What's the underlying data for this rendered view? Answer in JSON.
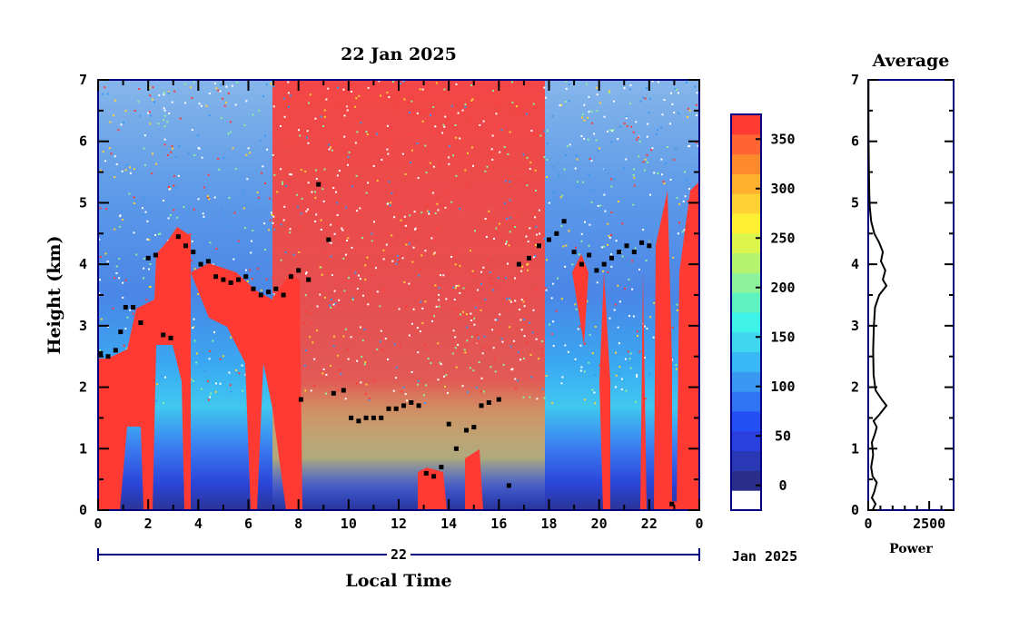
{
  "colors": {
    "axis": "#000080",
    "colorbar": [
      "#ffffff",
      "#2a2e8a",
      "#2a38b6",
      "#2940df",
      "#2350f5",
      "#2f74f2",
      "#3a98f2",
      "#38b8f4",
      "#3fd6ee",
      "#40f3e8",
      "#5ef2c0",
      "#8df29a",
      "#b5f36e",
      "#dcf54c",
      "#ffef33",
      "#ffd233",
      "#ffb02d",
      "#ff8a2d",
      "#ff6432",
      "#ff3a33"
    ]
  },
  "chart_data": [
    {
      "type": "heatmap",
      "title": "22 Jan 2025",
      "xlabel": "Local Time",
      "ylabel": "Height (km)",
      "xlim": [
        0,
        24
      ],
      "ylim": [
        0,
        7
      ],
      "x_ticks": [
        "0",
        "2",
        "4",
        "6",
        "8",
        "10",
        "12",
        "14",
        "16",
        "18",
        "20",
        "22",
        "0"
      ],
      "y_ticks": [
        "0",
        "1",
        "2",
        "3",
        "4",
        "5",
        "6",
        "7"
      ],
      "date_bar": {
        "day": "22",
        "month_year": "Jan 2025"
      },
      "colorbar": {
        "ticks": [
          "0",
          "50",
          "100",
          "150",
          "200",
          "250",
          "300",
          "350"
        ],
        "tick_values": [
          0,
          50,
          100,
          150,
          200,
          250,
          300,
          350
        ],
        "range": [
          -25,
          375
        ]
      },
      "cloud_base_points": [
        [
          0.1,
          2.55
        ],
        [
          0.4,
          2.5
        ],
        [
          0.7,
          2.6
        ],
        [
          0.9,
          2.9
        ],
        [
          1.1,
          3.3
        ],
        [
          1.4,
          3.3
        ],
        [
          1.7,
          3.05
        ],
        [
          2.0,
          4.1
        ],
        [
          2.3,
          4.15
        ],
        [
          2.6,
          2.85
        ],
        [
          2.9,
          2.8
        ],
        [
          3.2,
          4.45
        ],
        [
          3.5,
          4.3
        ],
        [
          3.8,
          4.2
        ],
        [
          4.1,
          4.0
        ],
        [
          4.4,
          4.05
        ],
        [
          4.7,
          3.8
        ],
        [
          5.0,
          3.75
        ],
        [
          5.3,
          3.7
        ],
        [
          5.6,
          3.75
        ],
        [
          5.9,
          3.8
        ],
        [
          6.2,
          3.6
        ],
        [
          6.5,
          3.5
        ],
        [
          6.8,
          3.55
        ],
        [
          7.1,
          3.6
        ],
        [
          7.4,
          3.5
        ],
        [
          7.7,
          3.8
        ],
        [
          8.0,
          3.9
        ],
        [
          8.1,
          1.8
        ],
        [
          8.4,
          3.75
        ],
        [
          8.8,
          5.3
        ],
        [
          9.2,
          4.4
        ],
        [
          9.4,
          1.9
        ],
        [
          9.8,
          1.95
        ],
        [
          10.1,
          1.5
        ],
        [
          10.4,
          1.45
        ],
        [
          10.7,
          1.5
        ],
        [
          11.0,
          1.5
        ],
        [
          11.3,
          1.5
        ],
        [
          11.6,
          1.65
        ],
        [
          11.9,
          1.65
        ],
        [
          12.2,
          1.7
        ],
        [
          12.5,
          1.75
        ],
        [
          12.8,
          1.7
        ],
        [
          13.1,
          0.6
        ],
        [
          13.4,
          0.55
        ],
        [
          13.7,
          0.7
        ],
        [
          14.0,
          1.4
        ],
        [
          14.3,
          1.0
        ],
        [
          14.7,
          1.3
        ],
        [
          15.0,
          1.35
        ],
        [
          15.3,
          1.7
        ],
        [
          15.6,
          1.75
        ],
        [
          16.0,
          1.8
        ],
        [
          16.4,
          0.4
        ],
        [
          16.8,
          4.0
        ],
        [
          17.2,
          4.1
        ],
        [
          17.6,
          4.3
        ],
        [
          18.0,
          4.4
        ],
        [
          18.3,
          4.5
        ],
        [
          18.6,
          4.7
        ],
        [
          19.0,
          4.2
        ],
        [
          19.3,
          4.0
        ],
        [
          19.6,
          4.15
        ],
        [
          19.9,
          3.9
        ],
        [
          20.2,
          4.0
        ],
        [
          20.5,
          4.1
        ],
        [
          20.8,
          4.2
        ],
        [
          21.1,
          4.3
        ],
        [
          21.4,
          4.2
        ],
        [
          21.7,
          4.35
        ],
        [
          22.0,
          4.3
        ],
        [
          22.9,
          0.1
        ]
      ]
    },
    {
      "type": "line",
      "title": "Average",
      "xlabel": "Power",
      "ylabel": "",
      "xlim": [
        0,
        3500
      ],
      "ylim": [
        0,
        7
      ],
      "x_ticks": [
        "0",
        "2500"
      ],
      "y_ticks": [
        "0",
        "1",
        "2",
        "3",
        "4",
        "5",
        "6",
        "7"
      ],
      "points": [
        [
          180,
          0.0
        ],
        [
          300,
          0.1
        ],
        [
          150,
          0.2
        ],
        [
          250,
          0.3
        ],
        [
          350,
          0.45
        ],
        [
          180,
          0.55
        ],
        [
          120,
          0.7
        ],
        [
          200,
          0.9
        ],
        [
          150,
          1.1
        ],
        [
          280,
          1.25
        ],
        [
          350,
          1.35
        ],
        [
          220,
          1.45
        ],
        [
          450,
          1.55
        ],
        [
          750,
          1.7
        ],
        [
          550,
          1.8
        ],
        [
          300,
          1.95
        ],
        [
          220,
          2.2
        ],
        [
          200,
          2.6
        ],
        [
          230,
          3.0
        ],
        [
          280,
          3.3
        ],
        [
          450,
          3.5
        ],
        [
          750,
          3.65
        ],
        [
          600,
          3.75
        ],
        [
          700,
          3.9
        ],
        [
          520,
          4.05
        ],
        [
          600,
          4.2
        ],
        [
          450,
          4.35
        ],
        [
          250,
          4.5
        ],
        [
          120,
          4.7
        ],
        [
          60,
          4.95
        ],
        [
          40,
          5.2
        ],
        [
          25,
          5.6
        ],
        [
          15,
          6.0
        ],
        [
          12,
          6.5
        ],
        [
          10,
          7.0
        ]
      ]
    }
  ]
}
